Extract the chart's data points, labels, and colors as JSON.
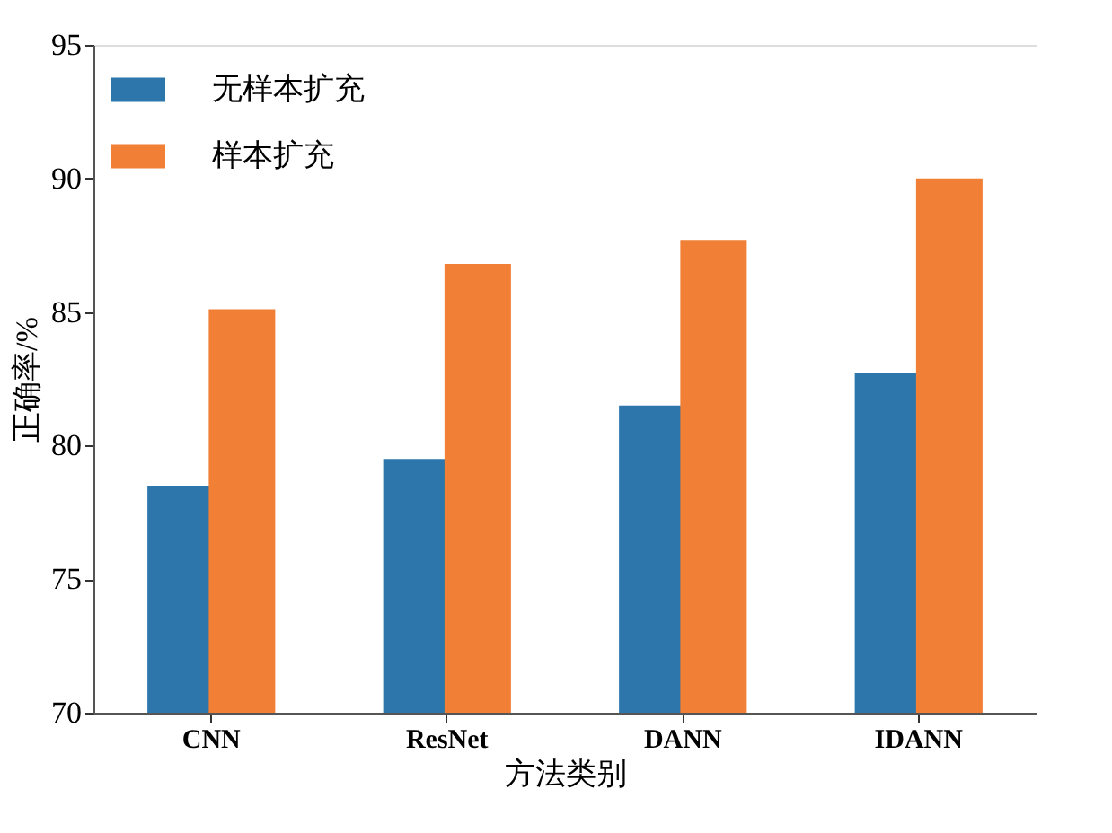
{
  "chart_data": {
    "type": "bar",
    "xlabel": "方法类别",
    "ylabel": "正确率/%",
    "categories": [
      "CNN",
      "ResNet",
      "DANN",
      "IDANN"
    ],
    "series": [
      {
        "name": "无样本扩充",
        "color": "#2c76ab",
        "values": [
          78.5,
          79.5,
          81.5,
          82.7
        ]
      },
      {
        "name": "样本扩充",
        "color": "#f17f35",
        "values": [
          85.1,
          86.8,
          87.7,
          90.0
        ]
      }
    ],
    "ylim": [
      70,
      95
    ],
    "yticks": [
      70,
      75,
      80,
      85,
      90,
      95
    ],
    "grid": false,
    "legend": "top left"
  }
}
